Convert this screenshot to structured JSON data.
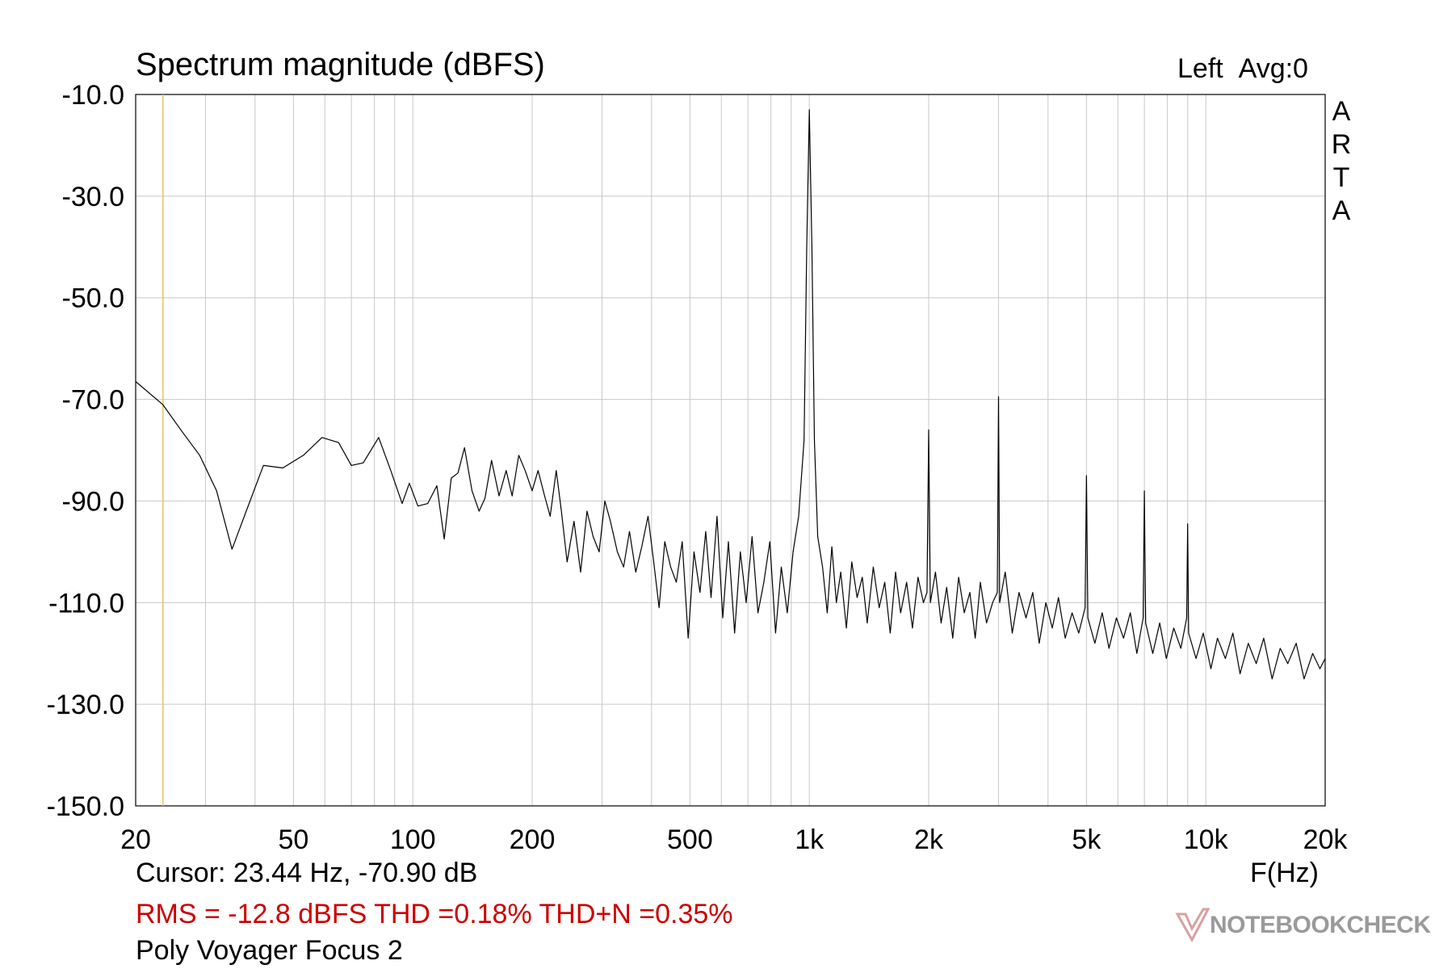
{
  "header": {
    "title": "Spectrum magnitude (dBFS)",
    "channel": "Left",
    "avg": "Avg:0",
    "vertical_brand": "ARTA"
  },
  "footer": {
    "cursor": "Cursor: 23.44 Hz, -70.90 dB",
    "x_unit": "F(Hz)",
    "stats": "RMS =  -12.8 dBFS THD =0.18% THD+N =0.35%",
    "device": "Poly Voyager Focus 2"
  },
  "watermark": {
    "text": "NOTEBOOKCHECK"
  },
  "colors": {
    "trace": "#000000",
    "grid": "#c8c8c8",
    "cursor_line": "#e6c35a",
    "stats_text": "#cc0000"
  },
  "chart_data": {
    "type": "line",
    "title": "Spectrum magnitude (dBFS)",
    "xlabel": "F(Hz)",
    "ylabel": "",
    "x_scale": "log",
    "xlim": [
      20,
      20000
    ],
    "ylim": [
      -150,
      -10
    ],
    "grid": true,
    "y_ticks": [
      -10,
      -30,
      -50,
      -70,
      -90,
      -110,
      -130,
      -150
    ],
    "y_tick_labels": [
      "-10.0",
      "-30.0",
      "-50.0",
      "-70.0",
      "-90.0",
      "-110.0",
      "-130.0",
      "-150.0"
    ],
    "x_ticks": [
      20,
      50,
      100,
      200,
      500,
      1000,
      2000,
      5000,
      10000,
      20000
    ],
    "x_tick_labels": [
      "20",
      "50",
      "100",
      "200",
      "500",
      "1k",
      "2k",
      "5k",
      "10k",
      "20k"
    ],
    "cursor": {
      "x": 23.44,
      "y": -70.9
    },
    "series": [
      {
        "x": [
          20,
          23.4,
          26,
          29,
          32,
          35,
          38,
          42,
          47,
          53,
          59,
          65,
          70,
          75,
          82,
          88,
          94,
          98,
          103,
          109,
          115,
          120,
          125,
          130,
          135,
          141,
          147,
          152,
          158,
          165,
          172,
          178,
          185,
          192,
          200,
          207,
          215,
          222,
          230,
          237,
          245,
          255,
          265,
          275,
          285,
          295,
          305,
          315,
          328,
          340,
          352,
          365,
          378,
          392,
          405,
          418,
          432,
          447,
          462,
          478,
          495,
          512,
          530,
          548,
          565,
          585,
          605,
          625,
          648,
          670,
          693,
          717,
          742,
          768,
          795,
          822,
          850,
          880,
          910,
          940,
          970,
          985,
          1000,
          1015,
          1030,
          1050,
          1080,
          1110,
          1140,
          1170,
          1200,
          1240,
          1280,
          1320,
          1360,
          1400,
          1450,
          1500,
          1550,
          1600,
          1650,
          1700,
          1760,
          1820,
          1880,
          1940,
          1980,
          2000,
          2020,
          2080,
          2150,
          2220,
          2300,
          2380,
          2460,
          2540,
          2620,
          2700,
          2800,
          2900,
          2980,
          3000,
          3020,
          3120,
          3250,
          3380,
          3520,
          3660,
          3800,
          3950,
          4100,
          4250,
          4420,
          4600,
          4780,
          4960,
          5000,
          5040,
          5250,
          5480,
          5700,
          5950,
          6200,
          6450,
          6700,
          6950,
          7000,
          7050,
          7350,
          7650,
          7950,
          8300,
          8650,
          8950,
          9000,
          9050,
          9450,
          9850,
          10300,
          10700,
          11200,
          11700,
          12200,
          12800,
          13400,
          14000,
          14700,
          15400,
          16100,
          16900,
          17700,
          18600,
          19400,
          20000
        ],
        "y": [
          -66.5,
          -71,
          -76,
          -81,
          -88,
          -99.5,
          -92,
          -83,
          -83.5,
          -81,
          -77.5,
          -78.5,
          -83,
          -82.5,
          -77.5,
          -84,
          -90.5,
          -86.5,
          -91,
          -90.5,
          -87,
          -97.5,
          -85.5,
          -84.5,
          -79.5,
          -88,
          -92,
          -89.5,
          -82,
          -89,
          -84,
          -89,
          -81,
          -84,
          -88,
          -84,
          -89,
          -93,
          -84,
          -92,
          -102,
          -94,
          -104,
          -92,
          -97,
          -100,
          -90,
          -94,
          -100,
          -103,
          -96,
          -104,
          -99,
          -93,
          -102,
          -111,
          -98,
          -103,
          -106,
          -98,
          -117,
          -100,
          -108,
          -96,
          -109,
          -93,
          -113,
          -98,
          -116,
          -100,
          -110,
          -97,
          -112,
          -106,
          -98,
          -116,
          -103,
          -112,
          -100,
          -93,
          -78,
          -40,
          -13,
          -40,
          -78,
          -97,
          -103,
          -112,
          -99,
          -110,
          -104,
          -115,
          -102,
          -109,
          -105,
          -114,
          -103,
          -111,
          -106,
          -116,
          -104,
          -112,
          -106,
          -115,
          -105,
          -110,
          -108,
          -76,
          -110,
          -104,
          -114,
          -107,
          -117,
          -105,
          -112,
          -108,
          -117,
          -106,
          -114,
          -110,
          -108,
          -69.5,
          -110,
          -104,
          -116,
          -108,
          -113,
          -108,
          -118,
          -110,
          -115,
          -109,
          -117,
          -112,
          -116,
          -111,
          -85,
          -113,
          -118,
          -112,
          -119,
          -113,
          -117,
          -112,
          -120,
          -113,
          -88,
          -114,
          -120,
          -114,
          -121,
          -115,
          -119,
          -113,
          -94.5,
          -116,
          -121,
          -116,
          -123,
          -117,
          -121,
          -116,
          -124,
          -118,
          -122,
          -117,
          -125,
          -119,
          -122,
          -118,
          -125,
          -120,
          -123,
          -121
        ]
      }
    ]
  }
}
